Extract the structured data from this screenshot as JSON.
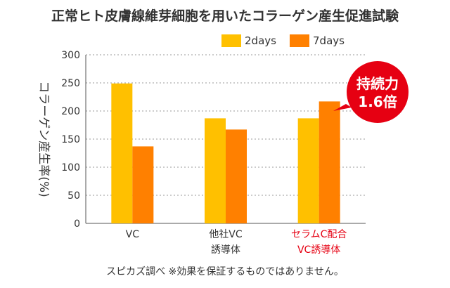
{
  "title": "正常ヒト皮膚線維芽細胞を用いたコラーゲン産生促進試験",
  "footnote": "スピカズ調べ ※効果を保証するものではありません。",
  "callout": {
    "line1": "持続力",
    "line2": "1.6倍",
    "color": "#e60012"
  },
  "colors": {
    "series_2days": "#ffc000",
    "series_7days": "#ff8000",
    "highlight_label": "#e60012",
    "grid": "#999999",
    "axis_text": "#333333"
  },
  "chart_data": {
    "type": "bar",
    "ylabel": "コラーゲン産生率(%)",
    "ylim": [
      0,
      300
    ],
    "yticks": [
      0,
      50,
      100,
      150,
      200,
      250,
      300
    ],
    "grid": true,
    "grid_style": "dotted",
    "legend_position": "top-right",
    "categories": [
      {
        "lines": [
          "VC"
        ],
        "highlight": false
      },
      {
        "lines": [
          "他社VC",
          "誘導体"
        ],
        "highlight": false
      },
      {
        "lines": [
          "セラムC配合",
          "VC誘導体"
        ],
        "highlight": true
      }
    ],
    "series": [
      {
        "name": "2days",
        "values": [
          249,
          187,
          187
        ]
      },
      {
        "name": "7days",
        "values": [
          137,
          167,
          217
        ]
      }
    ]
  }
}
